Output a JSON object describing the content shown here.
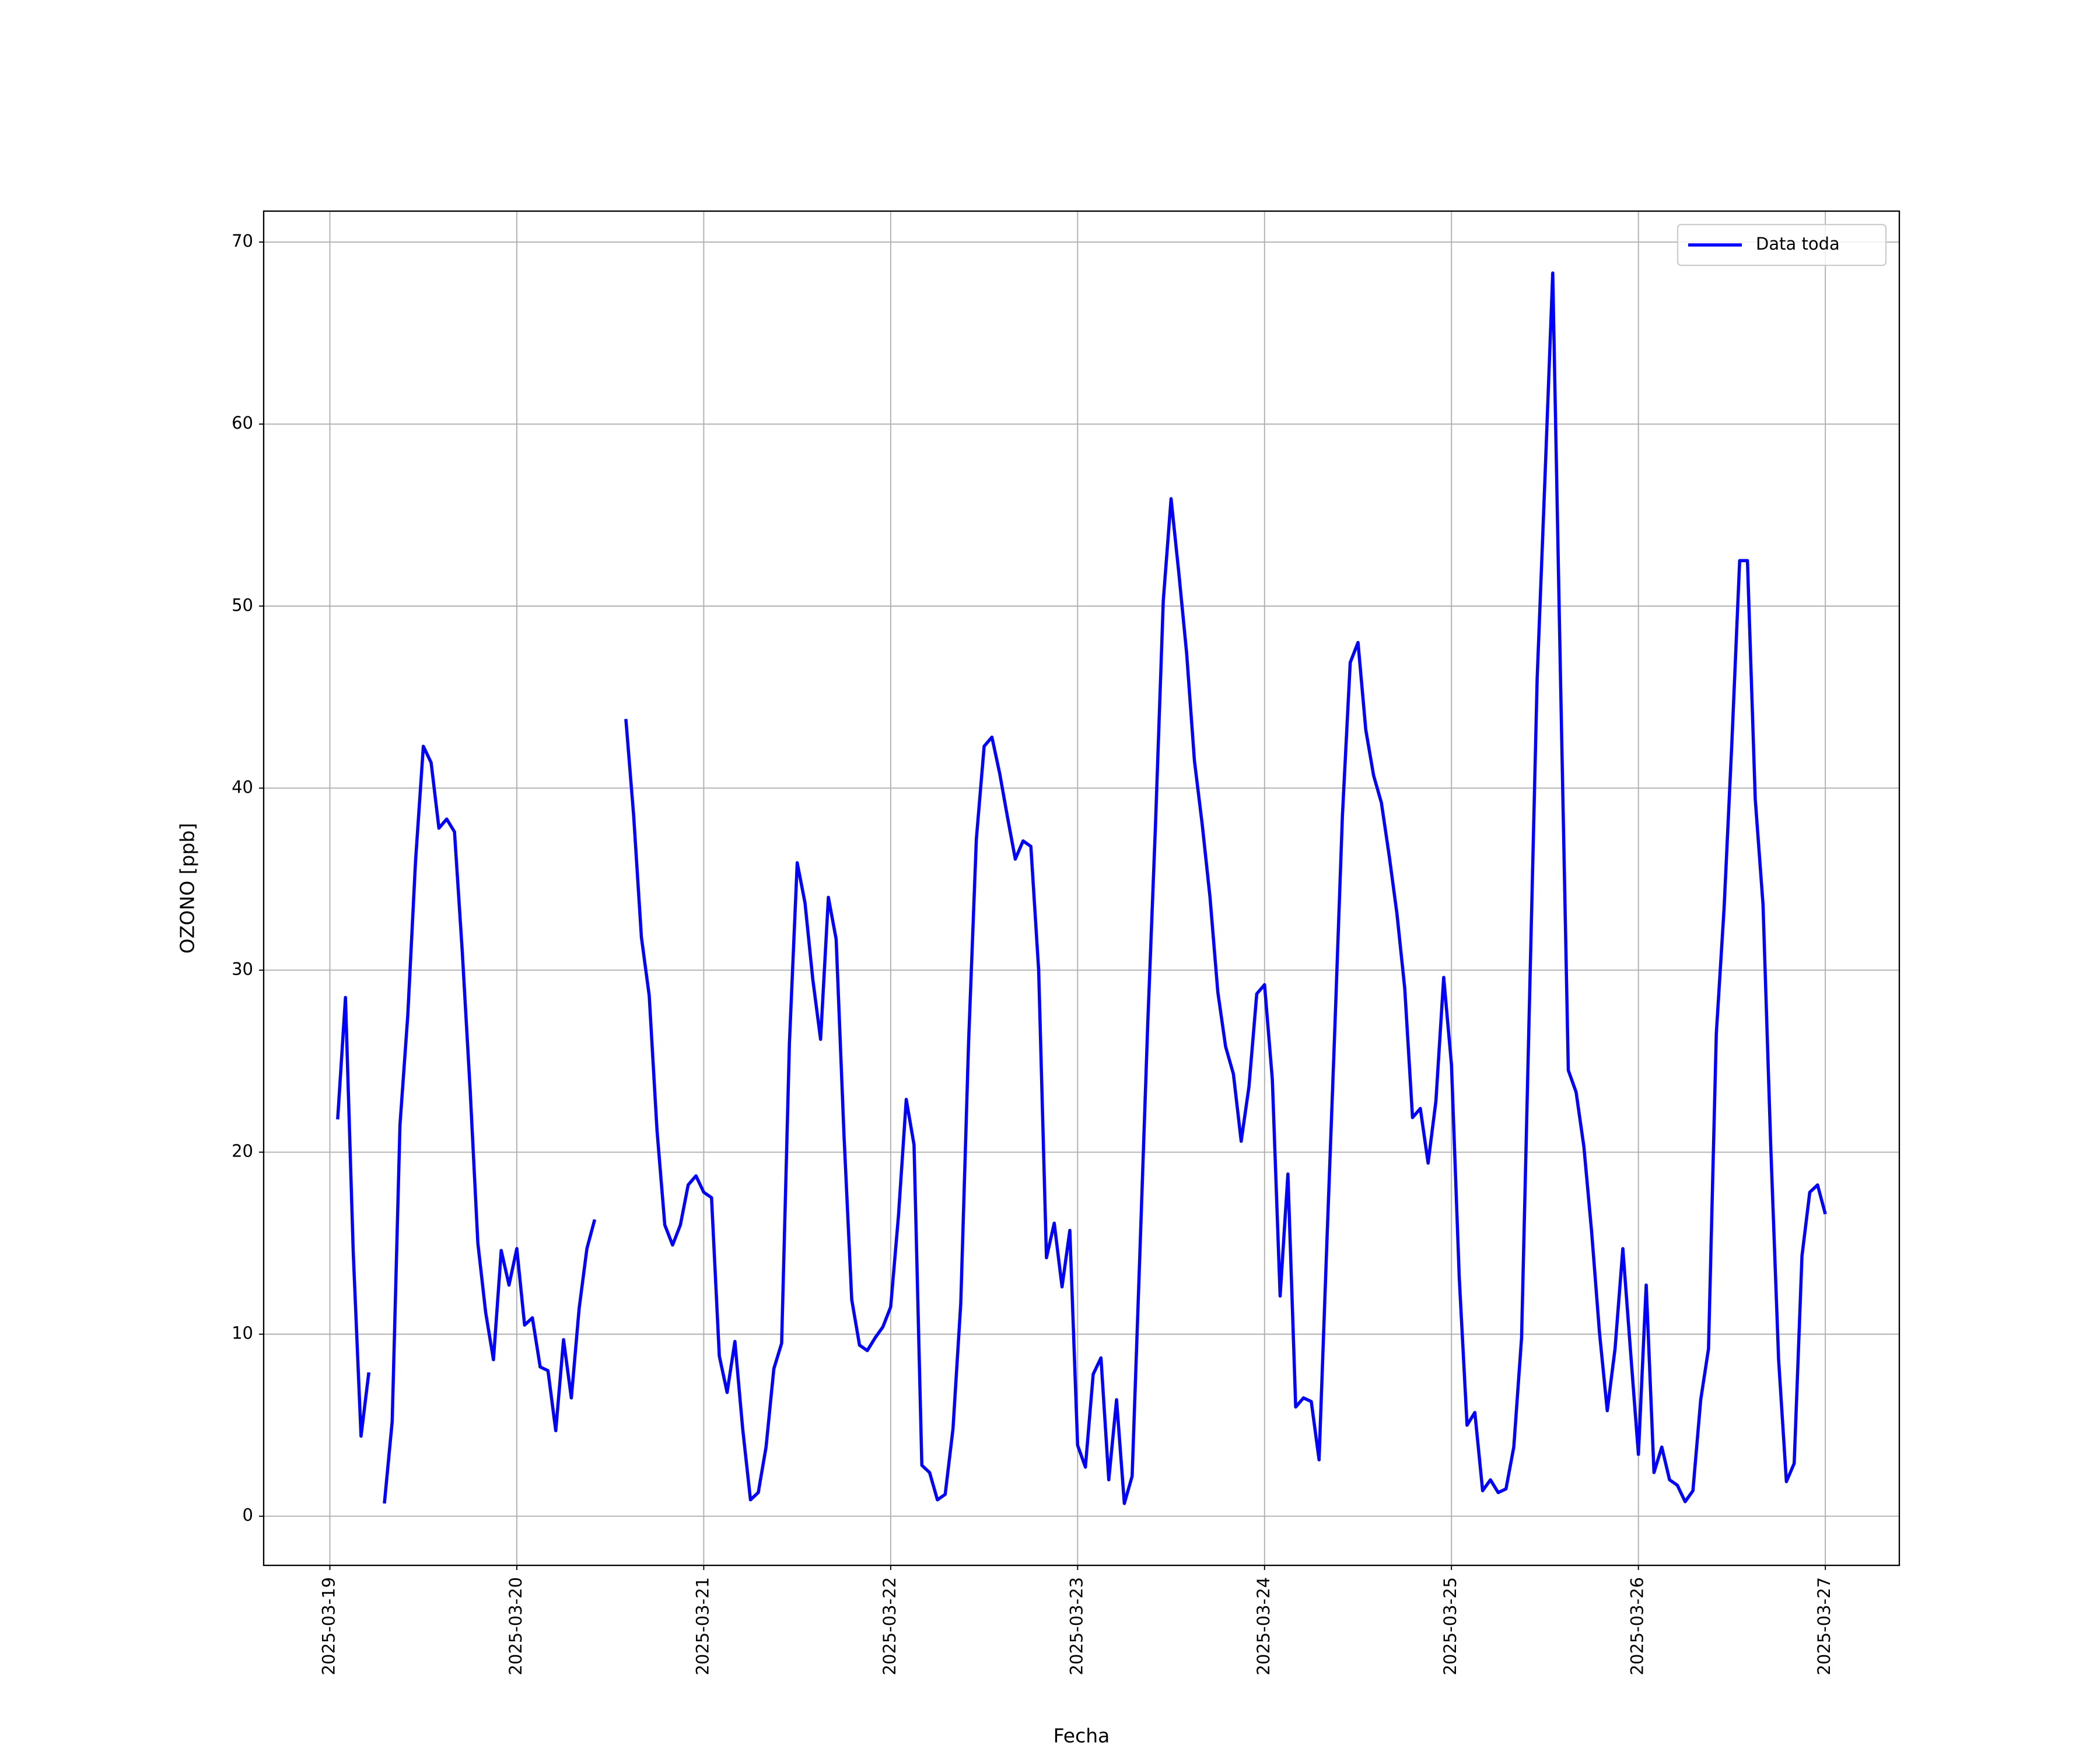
{
  "chart_data": {
    "type": "line",
    "xlabel": "Fecha",
    "ylabel": "OZONO [ppb]",
    "x": [
      "2025-03-19T01:00",
      "2025-03-19T02:00",
      "2025-03-19T03:00",
      "2025-03-19T04:00",
      "2025-03-19T05:00",
      "2025-03-19T06:00",
      "2025-03-19T07:00",
      "2025-03-19T08:00",
      "2025-03-19T09:00",
      "2025-03-19T10:00",
      "2025-03-19T11:00",
      "2025-03-19T12:00",
      "2025-03-19T13:00",
      "2025-03-19T14:00",
      "2025-03-19T15:00",
      "2025-03-19T16:00",
      "2025-03-19T17:00",
      "2025-03-19T18:00",
      "2025-03-19T19:00",
      "2025-03-19T20:00",
      "2025-03-19T21:00",
      "2025-03-19T22:00",
      "2025-03-19T23:00",
      "2025-03-20T00:00",
      "2025-03-20T01:00",
      "2025-03-20T02:00",
      "2025-03-20T03:00",
      "2025-03-20T04:00",
      "2025-03-20T05:00",
      "2025-03-20T06:00",
      "2025-03-20T07:00",
      "2025-03-20T08:00",
      "2025-03-20T09:00",
      "2025-03-20T10:00",
      "2025-03-20T11:00",
      "2025-03-20T12:00",
      "2025-03-20T13:00",
      "2025-03-20T14:00",
      "2025-03-20T15:00",
      "2025-03-20T16:00",
      "2025-03-20T17:00",
      "2025-03-20T18:00",
      "2025-03-20T19:00",
      "2025-03-20T20:00",
      "2025-03-20T21:00",
      "2025-03-20T22:00",
      "2025-03-20T23:00",
      "2025-03-21T00:00",
      "2025-03-21T01:00",
      "2025-03-21T02:00",
      "2025-03-21T03:00",
      "2025-03-21T04:00",
      "2025-03-21T05:00",
      "2025-03-21T06:00",
      "2025-03-21T07:00",
      "2025-03-21T08:00",
      "2025-03-21T09:00",
      "2025-03-21T10:00",
      "2025-03-21T11:00",
      "2025-03-21T12:00",
      "2025-03-21T13:00",
      "2025-03-21T14:00",
      "2025-03-21T15:00",
      "2025-03-21T16:00",
      "2025-03-21T17:00",
      "2025-03-21T18:00",
      "2025-03-21T19:00",
      "2025-03-21T20:00",
      "2025-03-21T21:00",
      "2025-03-21T22:00",
      "2025-03-21T23:00",
      "2025-03-22T00:00",
      "2025-03-22T01:00",
      "2025-03-22T02:00",
      "2025-03-22T03:00",
      "2025-03-22T04:00",
      "2025-03-22T05:00",
      "2025-03-22T06:00",
      "2025-03-22T07:00",
      "2025-03-22T08:00",
      "2025-03-22T09:00",
      "2025-03-22T10:00",
      "2025-03-22T11:00",
      "2025-03-22T12:00",
      "2025-03-22T13:00",
      "2025-03-22T14:00",
      "2025-03-22T15:00",
      "2025-03-22T16:00",
      "2025-03-22T17:00",
      "2025-03-22T18:00",
      "2025-03-22T19:00",
      "2025-03-22T20:00",
      "2025-03-22T21:00",
      "2025-03-22T22:00",
      "2025-03-22T23:00",
      "2025-03-23T00:00",
      "2025-03-23T01:00",
      "2025-03-23T02:00",
      "2025-03-23T03:00",
      "2025-03-23T04:00",
      "2025-03-23T05:00",
      "2025-03-23T06:00",
      "2025-03-23T07:00",
      "2025-03-23T08:00",
      "2025-03-23T09:00",
      "2025-03-23T10:00",
      "2025-03-23T11:00",
      "2025-03-23T12:00",
      "2025-03-23T13:00",
      "2025-03-23T14:00",
      "2025-03-23T15:00",
      "2025-03-23T16:00",
      "2025-03-23T17:00",
      "2025-03-23T18:00",
      "2025-03-23T19:00",
      "2025-03-23T20:00",
      "2025-03-23T21:00",
      "2025-03-23T22:00",
      "2025-03-23T23:00",
      "2025-03-24T00:00",
      "2025-03-24T01:00",
      "2025-03-24T02:00",
      "2025-03-24T03:00",
      "2025-03-24T04:00",
      "2025-03-24T05:00",
      "2025-03-24T06:00",
      "2025-03-24T07:00",
      "2025-03-24T08:00",
      "2025-03-24T09:00",
      "2025-03-24T10:00",
      "2025-03-24T11:00",
      "2025-03-24T12:00",
      "2025-03-24T13:00",
      "2025-03-24T14:00",
      "2025-03-24T15:00",
      "2025-03-24T16:00",
      "2025-03-24T17:00",
      "2025-03-24T18:00",
      "2025-03-24T19:00",
      "2025-03-24T20:00",
      "2025-03-24T21:00",
      "2025-03-24T22:00",
      "2025-03-24T23:00",
      "2025-03-25T00:00",
      "2025-03-25T01:00",
      "2025-03-25T02:00",
      "2025-03-25T03:00",
      "2025-03-25T04:00",
      "2025-03-25T05:00",
      "2025-03-25T06:00",
      "2025-03-25T07:00",
      "2025-03-25T08:00",
      "2025-03-25T09:00",
      "2025-03-25T10:00",
      "2025-03-25T11:00",
      "2025-03-25T12:00",
      "2025-03-25T13:00",
      "2025-03-25T14:00",
      "2025-03-25T15:00",
      "2025-03-25T16:00",
      "2025-03-25T17:00",
      "2025-03-25T18:00",
      "2025-03-25T19:00",
      "2025-03-25T20:00",
      "2025-03-25T21:00",
      "2025-03-25T22:00",
      "2025-03-25T23:00",
      "2025-03-26T00:00",
      "2025-03-26T01:00",
      "2025-03-26T02:00",
      "2025-03-26T03:00",
      "2025-03-26T04:00",
      "2025-03-26T05:00",
      "2025-03-26T06:00",
      "2025-03-26T07:00",
      "2025-03-26T08:00",
      "2025-03-26T09:00",
      "2025-03-26T10:00",
      "2025-03-26T11:00",
      "2025-03-26T12:00",
      "2025-03-26T13:00",
      "2025-03-26T14:00",
      "2025-03-26T15:00",
      "2025-03-26T16:00",
      "2025-03-26T17:00",
      "2025-03-26T18:00",
      "2025-03-26T19:00",
      "2025-03-26T20:00",
      "2025-03-26T21:00",
      "2025-03-26T22:00",
      "2025-03-26T23:00",
      "2025-03-27T00:00"
    ],
    "series": [
      {
        "name": "Data toda",
        "color": "#0000ff",
        "values": [
          21.8,
          28.5,
          14.5,
          4.4,
          7.9,
          null,
          0.7,
          5.2,
          21.5,
          27.5,
          36,
          42.3,
          41.4,
          37.8,
          38.3,
          37.6,
          31,
          23.5,
          15,
          11.2,
          8.6,
          14.6,
          12.7,
          14.7,
          10.5,
          10.9,
          8.2,
          8,
          4.7,
          9.7,
          6.5,
          11.4,
          14.7,
          16.3,
          null,
          null,
          null,
          43.8,
          38.5,
          31.8,
          28.6,
          21.2,
          16,
          14.9,
          16,
          18.2,
          18.7,
          17.8,
          17.5,
          8.8,
          6.8,
          9.6,
          4.8,
          0.9,
          1.3,
          3.8,
          8.1,
          9.5,
          26,
          35.9,
          33.7,
          29.5,
          26.2,
          34,
          31.7,
          21,
          11.9,
          9.4,
          9.1,
          9.8,
          10.4,
          11.5,
          16.5,
          22.9,
          20.4,
          2.8,
          2.4,
          0.9,
          1.2,
          4.8,
          11.7,
          26,
          37.2,
          42.3,
          42.8,
          40.8,
          38.4,
          36.1,
          37.1,
          36.8,
          30,
          14.2,
          16.1,
          12.6,
          15.7,
          3.9,
          2.7,
          7.8,
          8.7,
          2,
          6.4,
          0.7,
          2.2,
          14.5,
          27,
          38,
          50.3,
          55.9,
          51.8,
          47.4,
          41.5,
          38,
          34,
          28.8,
          25.8,
          24.3,
          20.6,
          23.6,
          28.7,
          29.2,
          24,
          12.1,
          18.8,
          6,
          6.5,
          6.3,
          3.1,
          15,
          26.5,
          38.5,
          46.9,
          48,
          43.2,
          40.7,
          39.2,
          36.3,
          33.1,
          29,
          21.9,
          22.4,
          19.4,
          22.8,
          29.6,
          24.8,
          13.1,
          5,
          5.7,
          1.4,
          2,
          1.3,
          1.5,
          3.8,
          9.8,
          28,
          46,
          57,
          68.3,
          46,
          24.5,
          23.3,
          20.3,
          15.6,
          10.1,
          5.8,
          9.2,
          14.7,
          9,
          3.4,
          12.7,
          2.4,
          3.8,
          2,
          1.7,
          0.8,
          1.4,
          6.4,
          9.2,
          26.5,
          33.4,
          42.5,
          52.5,
          52.5,
          39.4,
          33.6,
          20.2,
          8.6,
          1.9,
          2.9,
          14.3,
          17.8,
          18.2,
          16.6
        ]
      }
    ],
    "xlim": [
      "2025-03-18T15:30",
      "2025-03-27T09:30"
    ],
    "xticks": [
      "2025-03-19",
      "2025-03-20",
      "2025-03-21",
      "2025-03-22",
      "2025-03-23",
      "2025-03-24",
      "2025-03-25",
      "2025-03-26",
      "2025-03-27"
    ],
    "ylim": [
      -2.7,
      71.7
    ],
    "yticks": [
      0,
      10,
      20,
      30,
      40,
      50,
      60,
      70
    ],
    "grid": true,
    "legend": "upper right"
  }
}
